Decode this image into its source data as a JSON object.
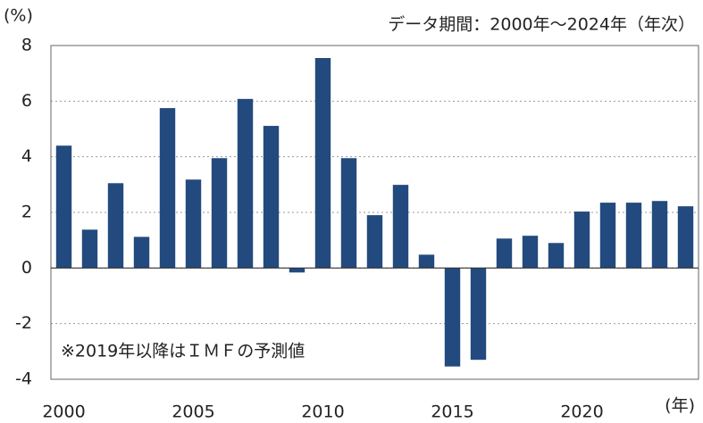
{
  "chart_data": {
    "type": "bar",
    "title": "データ期間：2000年～2024年（年次）",
    "y_label": "(%)",
    "x_label": "(年)",
    "annotation": "※2019年以降はＩＭＦの予測値",
    "categories": [
      "2000",
      null,
      null,
      null,
      null,
      "2005",
      null,
      null,
      null,
      null,
      "2010",
      null,
      null,
      null,
      null,
      "2015",
      null,
      null,
      null,
      null,
      "2020",
      null,
      null,
      null,
      null
    ],
    "values": [
      4.4,
      1.38,
      3.05,
      1.12,
      5.75,
      3.18,
      3.95,
      6.08,
      5.11,
      -0.16,
      7.55,
      3.95,
      1.9,
      2.99,
      0.48,
      -3.54,
      -3.3,
      1.06,
      1.16,
      0.9,
      2.03,
      2.35,
      2.35,
      2.41,
      2.22
    ],
    "color": "#234a7e",
    "ylim": [
      -4,
      8
    ],
    "yticks": [
      -4,
      -2,
      0,
      2,
      4,
      6,
      8
    ],
    "grid": true
  }
}
